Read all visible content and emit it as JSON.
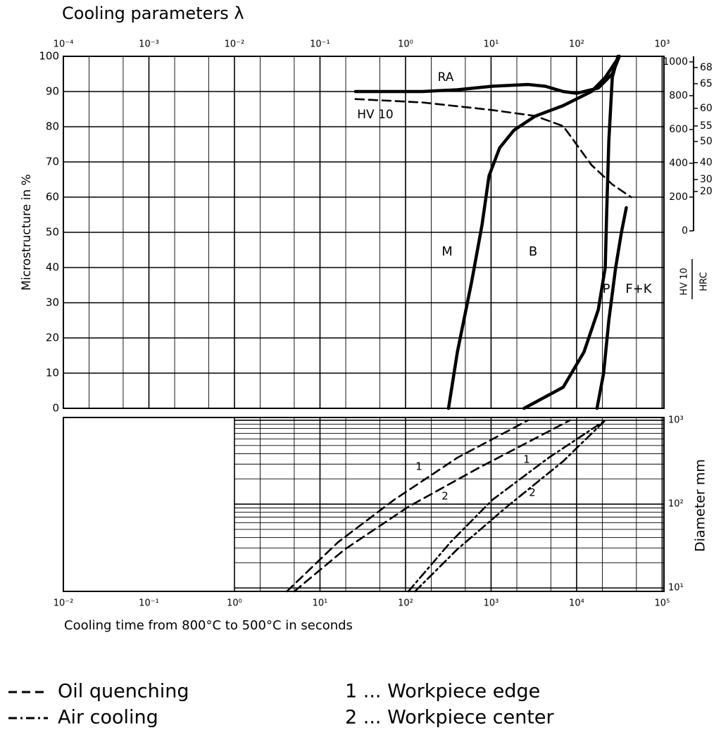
{
  "chart_data": [
    {
      "type": "line",
      "title": "Cooling parameters λ",
      "log_x": true,
      "xlim": [
        0.01,
        105000
      ],
      "x2lim": [
        0.0001,
        1050
      ],
      "x2ticks": [
        {
          "value": 0.0001,
          "label": "10⁻⁴"
        },
        {
          "value": 0.001,
          "label": "10⁻³"
        },
        {
          "value": 0.01,
          "label": "10⁻²"
        },
        {
          "value": 0.1,
          "label": "10⁻¹"
        },
        {
          "value": 1,
          "label": "10⁰"
        },
        {
          "value": 10,
          "label": "10¹"
        },
        {
          "value": 100,
          "label": "10²"
        },
        {
          "value": 1000,
          "label": "10³"
        }
      ],
      "y_label": "Microstructure in %",
      "ylim": [
        0,
        100
      ],
      "yticks": [
        0,
        10,
        20,
        30,
        40,
        50,
        60,
        70,
        80,
        90,
        100
      ],
      "y2_label": "HV 10",
      "y2lim": [
        -1050,
        1033
      ],
      "y2ticks": [
        0,
        200,
        400,
        600,
        800,
        1000
      ],
      "y3_label": "HRC",
      "y3ticks": [
        {
          "value": 967,
          "label": "68"
        },
        {
          "value": 871,
          "label": "65"
        },
        {
          "value": 725,
          "label": "60"
        },
        {
          "value": 621,
          "label": "55"
        },
        {
          "value": 529,
          "label": "50"
        },
        {
          "value": 404,
          "label": "40"
        },
        {
          "value": 304,
          "label": "30"
        },
        {
          "value": 233,
          "label": "20"
        }
      ],
      "grid": true,
      "series": [
        {
          "name": "RA",
          "color": "#000000",
          "style": "solid",
          "x": [
            26,
            157,
            404,
            1030,
            2700,
            4300,
            6970,
            10060,
            17900,
            26100,
            31600
          ],
          "values": [
            90,
            90,
            90.5,
            91.5,
            92,
            91.5,
            90,
            89.5,
            91,
            95,
            100
          ]
        },
        {
          "name": "HV 10",
          "color": "#000000",
          "style": "dashed",
          "axis": "y2",
          "x": [
            26,
            157,
            1030,
            3270,
            6970,
            14900,
            26100,
            43300
          ],
          "values": [
            780,
            760,
            715,
            680,
            620,
            390,
            275,
            200
          ]
        },
        {
          "color": "#000000",
          "style": "solid",
          "x": [
            318,
            404,
            593,
            783,
            946,
            1260,
            1850,
            3270,
            6970,
            14900,
            21600,
            31600
          ],
          "values": [
            0,
            16,
            36,
            52,
            66,
            74,
            79,
            83,
            86,
            90,
            94,
            100
          ]
        },
        {
          "color": "#000000",
          "style": "solid",
          "x": [
            2430,
            6970,
            12200,
            17900,
            21600,
            22500,
            23800,
            26100,
            30400
          ],
          "values": [
            0,
            6,
            16,
            28,
            40,
            56,
            76,
            94,
            100
          ]
        },
        {
          "color": "#000000",
          "style": "solid",
          "x": [
            17300,
            20700,
            23800,
            28600,
            33400,
            38100
          ],
          "values": [
            0,
            10,
            25,
            40,
            50,
            57
          ]
        }
      ],
      "annotations": [
        "M",
        "B",
        "P",
        "F+K"
      ]
    },
    {
      "type": "line",
      "log_x": true,
      "log_y": true,
      "x_label": "Cooling time from 800°C to 500°C in seconds",
      "xlim": [
        0.01,
        105000
      ],
      "xticks": [
        {
          "value": 0.01,
          "label": "10⁻²"
        },
        {
          "value": 0.1,
          "label": "10⁻¹"
        },
        {
          "value": 1,
          "label": "10⁰"
        },
        {
          "value": 10,
          "label": "10¹"
        },
        {
          "value": 100,
          "label": "10²"
        },
        {
          "value": 1000,
          "label": "10³"
        },
        {
          "value": 10000,
          "label": "10⁴"
        },
        {
          "value": 100000,
          "label": "10⁵"
        }
      ],
      "grid_xmin": 1,
      "y_label": "Diameter mm",
      "ylim": [
        9.1,
        1080
      ],
      "yticks": [
        {
          "value": 10,
          "label": "10¹"
        },
        {
          "value": 100,
          "label": "10²"
        },
        {
          "value": 1000,
          "label": "10³"
        }
      ],
      "grid": true,
      "series": [
        {
          "name": "Oil quenching",
          "color": "#000000",
          "style": "dashed",
          "curves": [
            {
              "label": "1",
              "x": [
                4.1,
                16.2,
                73,
                404,
                2700
              ],
              "values": [
                9.1,
                35,
                112,
                358,
                1000
              ]
            },
            {
              "label": "2",
              "x": [
                5.0,
                19.6,
                108,
                714,
                8340
              ],
              "values": [
                9.1,
                29,
                93,
                270,
                1000
              ]
            }
          ]
        },
        {
          "name": "Air cooling",
          "color": "#000000",
          "style": "dash-dot",
          "curves": [
            {
              "label": "1",
              "x": [
                108,
                335,
                1030,
                4730,
                21600
              ],
              "values": [
                9.1,
                35,
                112,
                358,
                1000
              ]
            },
            {
              "label": "2",
              "x": [
                129,
                404,
                1530,
                6970,
                21600
              ],
              "values": [
                9.1,
                29,
                93,
                325,
                1000
              ]
            }
          ]
        }
      ],
      "key": [
        "1 ... Workpiece edge",
        "2 ... Workpiece center"
      ]
    }
  ]
}
